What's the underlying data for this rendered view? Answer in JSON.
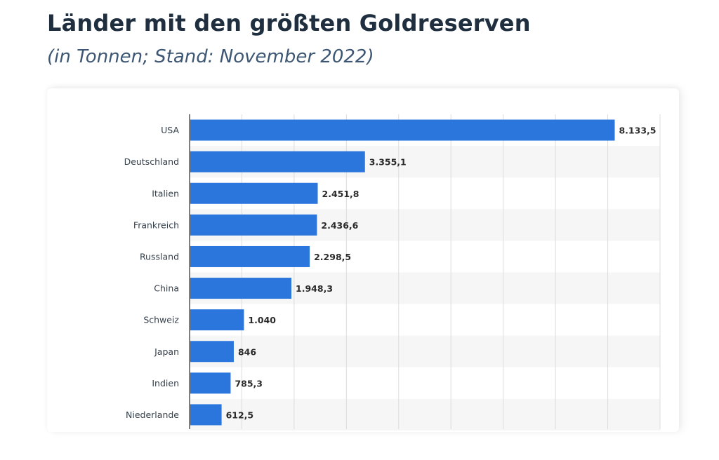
{
  "header": {
    "title": "Länder mit den größten Goldreserven",
    "subtitle": "(in Tonnen; Stand: November 2022)"
  },
  "colors": {
    "bar": "#2a76dd",
    "row_alt": "#f6f6f6",
    "grid": "#dcdcdc",
    "axis": "#2b2b2b"
  },
  "chart_data": {
    "type": "bar",
    "orientation": "horizontal",
    "title": "Länder mit den größten Goldreserven",
    "subtitle": "(in Tonnen; Stand: November 2022)",
    "categories": [
      "USA",
      "Deutschland",
      "Italien",
      "Frankreich",
      "Russland",
      "China",
      "Schweiz",
      "Japan",
      "Indien",
      "Niederlande"
    ],
    "values": [
      8133.5,
      3355.1,
      2451.8,
      2436.6,
      2298.5,
      1948.3,
      1040,
      846,
      785.3,
      612.5
    ],
    "value_labels": [
      "8.133,5",
      "3.355,1",
      "2.451,8",
      "2.436,6",
      "2.298,5",
      "1.948,3",
      "1.040",
      "846",
      "785,3",
      "612,5"
    ],
    "xlabel": "",
    "ylabel": "",
    "xlim": [
      0,
      9000
    ],
    "grid": true,
    "legend": "none"
  }
}
